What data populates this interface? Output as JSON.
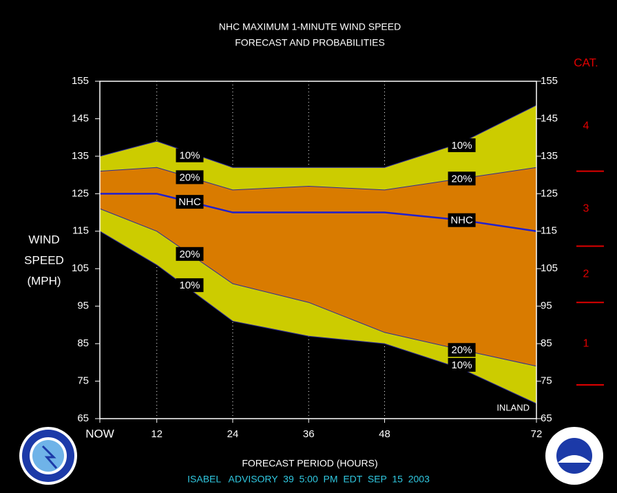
{
  "chart_data": {
    "type": "band",
    "title": "NHC MAXIMUM 1-MINUTE WIND SPEED",
    "subtitle": "FORECAST AND PROBABILITIES",
    "ylabel": [
      "WIND",
      "SPEED",
      "(MPH)"
    ],
    "xlabel": "FORECAST PERIOD (HOURS)",
    "footer": "ISABEL   ADVISORY  39  5:00  PM  EDT  SEP  15  2003",
    "annotation": "INLAND",
    "x": [
      3,
      12,
      24,
      36,
      48,
      60,
      72
    ],
    "xlim": [
      3,
      72
    ],
    "xticks": [
      {
        "value": 3,
        "label": "NOW"
      },
      12,
      24,
      36,
      48,
      72
    ],
    "ylim": [
      65,
      155
    ],
    "yticks": [
      65,
      75,
      85,
      95,
      105,
      115,
      125,
      135,
      145,
      155
    ],
    "series": [
      {
        "name": "10%",
        "color": "#cccc00",
        "values": [
          135,
          139,
          132,
          132,
          132,
          138.5,
          148.6
        ]
      },
      {
        "name": "20%",
        "color": "#d97b00",
        "values": [
          131,
          132,
          126,
          127,
          126,
          129,
          132
        ]
      },
      {
        "name": "NHC",
        "color": "#1f1fd0",
        "values": [
          125,
          125,
          120,
          120,
          120,
          118,
          115
        ]
      },
      {
        "name": "20%",
        "color": "#d97b00",
        "values": [
          121,
          115,
          101,
          96,
          88,
          83.4,
          79
        ]
      },
      {
        "name": "10%",
        "color": "#cccc00",
        "values": [
          115,
          106,
          91,
          87,
          85,
          78.4,
          69
        ]
      }
    ],
    "category_title": "CAT.",
    "categories": [
      "1",
      "2",
      "3",
      "4"
    ],
    "category_bounds": [
      74,
      96,
      111,
      131
    ],
    "category_color": "#e00000"
  }
}
